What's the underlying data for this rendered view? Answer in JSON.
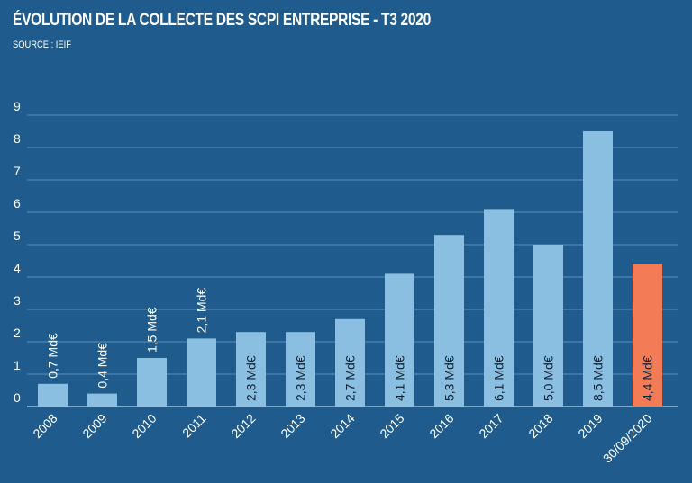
{
  "chart_data": {
    "type": "bar",
    "title": "ÉVOLUTION DE LA COLLECTE DES SCPI ENTREPRISE - T3 2020",
    "subtitle": "SOURCE : IEIF",
    "xlabel": "",
    "ylabel": "",
    "ylim": [
      0,
      9
    ],
    "yticks": [
      "0",
      "1",
      "2",
      "3",
      "4",
      "5",
      "6",
      "7",
      "8",
      "9"
    ],
    "grid": true,
    "categories": [
      "2008",
      "2009",
      "2010",
      "2011",
      "2012",
      "2013",
      "2014",
      "2015",
      "2016",
      "2017",
      "2018",
      "2019",
      "30/09/2020"
    ],
    "values": [
      0.7,
      0.4,
      1.5,
      2.1,
      2.3,
      2.3,
      2.7,
      4.1,
      5.3,
      6.1,
      5.0,
      8.5,
      4.4
    ],
    "value_labels": [
      "0,7 Md€",
      "0,4 Md€",
      "1,5 Md€",
      "2,1 Md€",
      "2,3 Md€",
      "2,3 Md€",
      "2,7 Md€",
      "4,1 Md€",
      "5,3 Md€",
      "6,1 Md€",
      "5,0 Md€",
      "8,5 Md€",
      "4,4 Md€"
    ],
    "colors": {
      "background": "#1f5c8d",
      "bar": "#8bbfe1",
      "highlight_bar": "#f37c57",
      "gridline": "#5a8fbd"
    },
    "highlight_index": 12
  }
}
